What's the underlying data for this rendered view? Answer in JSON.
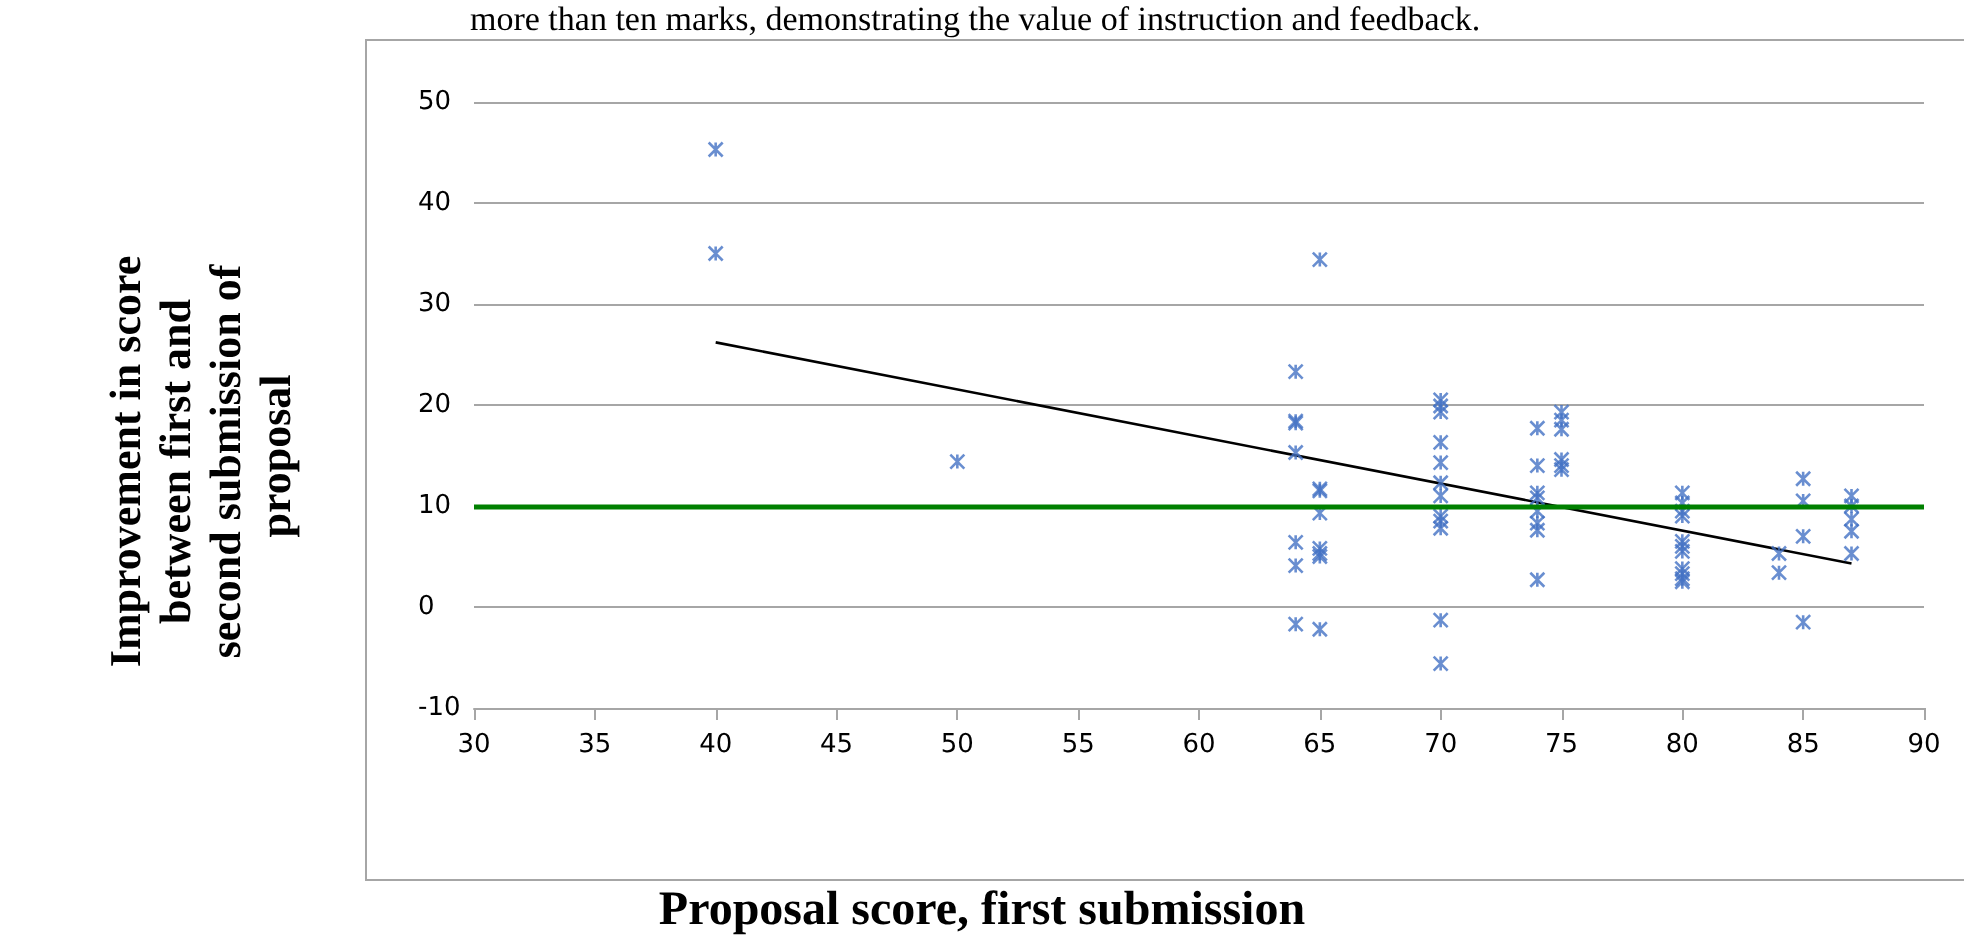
{
  "chart_data": {
    "type": "scatter",
    "xlabel": "Proposal score, first submission",
    "ylabel": "Improvement in score between first and second submission of proposal",
    "annotations": [
      "more than ten marks, demonstrating the value of instruction and feedback."
    ],
    "xlim": [
      30,
      90
    ],
    "xticks": [
      30,
      35,
      40,
      45,
      50,
      55,
      60,
      65,
      70,
      75,
      80,
      85,
      90
    ],
    "ylim": [
      -10,
      50
    ],
    "yticks": [
      -10,
      0,
      10,
      20,
      30,
      40,
      50
    ],
    "grid": "y",
    "marker": "cross",
    "series": [
      {
        "type": "scatter",
        "color": "#4472c4",
        "x": [
          40,
          40,
          50,
          64,
          64,
          64,
          64,
          64,
          64,
          64,
          65,
          65,
          65,
          65,
          65,
          65,
          65,
          65,
          70,
          70,
          70,
          70,
          70,
          70,
          70,
          70,
          70,
          70,
          70,
          70,
          74,
          74,
          74,
          74,
          74,
          74,
          74,
          74,
          75,
          75,
          75,
          75,
          75,
          75,
          80,
          80,
          80,
          80,
          80,
          80,
          80,
          80,
          80,
          80,
          80,
          84,
          84,
          85,
          85,
          85,
          85,
          87,
          87,
          87,
          87,
          87
        ],
        "values": [
          45.3,
          35,
          14.4,
          23.3,
          18.4,
          18.2,
          15.3,
          6.4,
          4.1,
          -1.7,
          34.4,
          11.7,
          11.5,
          9.3,
          5.8,
          5.3,
          5,
          -2.2,
          20.5,
          19.9,
          19.3,
          16.3,
          14.3,
          12.3,
          11,
          9,
          8.5,
          7.8,
          -1.3,
          -5.6,
          17.7,
          14,
          11.3,
          10.8,
          9.5,
          8.3,
          7.6,
          2.7,
          19.3,
          18.5,
          17.6,
          14.6,
          14,
          13.6,
          11.3,
          10.3,
          9.5,
          9,
          6.5,
          6,
          5.5,
          3.8,
          3.3,
          2.8,
          2.5,
          5.3,
          3.4,
          12.7,
          10.5,
          7,
          -1.5,
          11,
          10,
          8.7,
          7.5,
          5.3
        ]
      },
      {
        "type": "line",
        "color": "#000000",
        "x": [
          40,
          87
        ],
        "values": [
          26.2,
          4.3
        ],
        "marker": "none"
      }
    ],
    "ref_lines": [
      {
        "axis": "y",
        "value": 10,
        "color": "#008000"
      }
    ]
  }
}
